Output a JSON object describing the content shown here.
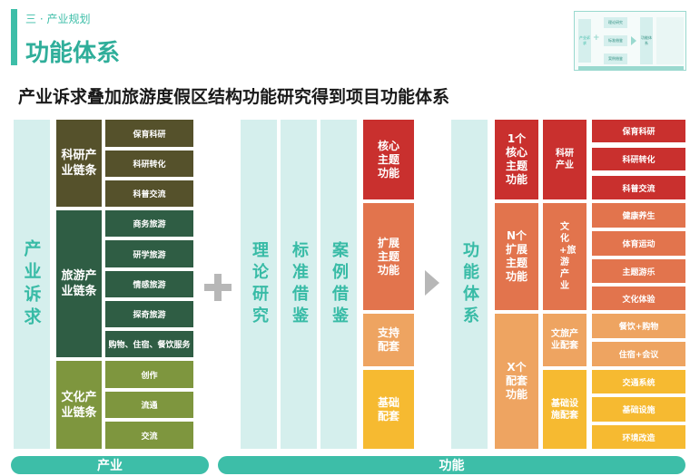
{
  "header": {
    "section": "三 · 产业规划",
    "title": "功能体系"
  },
  "subtitle": "产业诉求叠加旅游度假区结构功能研究得到项目功能体系",
  "demand_label": "产业诉求",
  "chains": [
    {
      "label": "科研产业链条",
      "items": [
        "保育科研",
        "科研转化",
        "科普交流"
      ]
    },
    {
      "label": "旅游产业链条",
      "items": [
        "商务旅游",
        "研学旅游",
        "情感旅游",
        "探奇旅游",
        "购物、住宿、餐饮服务"
      ]
    },
    {
      "label": "文化产业链条",
      "items": [
        "创作",
        "流通",
        "交流"
      ]
    }
  ],
  "plus_symbol": "+",
  "research_columns": [
    "理论研究",
    "标准借鉴",
    "案例借鉴"
  ],
  "case_items": [
    "核心主题功能",
    "扩展主题功能",
    "支持配套",
    "基础配套"
  ],
  "system_label": "功能体系",
  "levels": [
    "1个核心主题功能",
    "N个扩展主题功能",
    "X个配套功能"
  ],
  "categories": [
    "科研产业",
    "文化+旅游产业",
    "文旅产业配套",
    "基础设施配套"
  ],
  "functions": [
    "保育科研",
    "科研转化",
    "科普交流",
    "健康养生",
    "体育运动",
    "主题游乐",
    "文化体验",
    "餐饮+购物",
    "住宿+会议",
    "交通系统",
    "基础设施",
    "环境改造"
  ],
  "bottom": {
    "industry": "产业",
    "function": "功能"
  },
  "thumbnail": {
    "items": [
      "理论研究",
      "标准借鉴",
      "案例借鉴"
    ],
    "result": "功能体系",
    "left": "产业诉求"
  },
  "colors": {
    "teal": "#3dbea8",
    "mint": "#d5efed",
    "olive": "#55512b",
    "forest": "#2f5d44",
    "moss": "#7e963e",
    "red": "#c9302e",
    "orange": "#e2744d",
    "light_orange": "#eea461",
    "yellow": "#f6ba31"
  }
}
